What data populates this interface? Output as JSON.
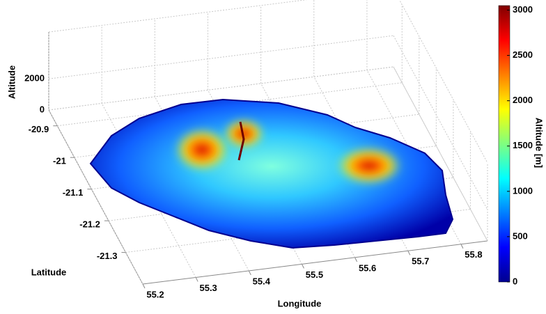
{
  "chart_data": {
    "type": "surface3d",
    "xlabel": "Longitude",
    "ylabel": "Latitude",
    "zlabel": "Altitude",
    "xlim": [
      55.2,
      55.85
    ],
    "ylim": [
      -21.4,
      -20.85
    ],
    "zlim": [
      0,
      5000
    ],
    "xticks": [
      55.2,
      55.3,
      55.4,
      55.5,
      55.6,
      55.7,
      55.8
    ],
    "yticks": [
      -20.9,
      -21,
      -21.1,
      -21.2,
      -21.3
    ],
    "zticks": [
      0,
      2000
    ],
    "grid": true,
    "colormap": "jet",
    "colorbar": {
      "label": "Altitude [m]",
      "clim": [
        0,
        3050
      ],
      "ticks": [
        0,
        500,
        1000,
        1500,
        2000,
        2500,
        3000
      ]
    }
  }
}
